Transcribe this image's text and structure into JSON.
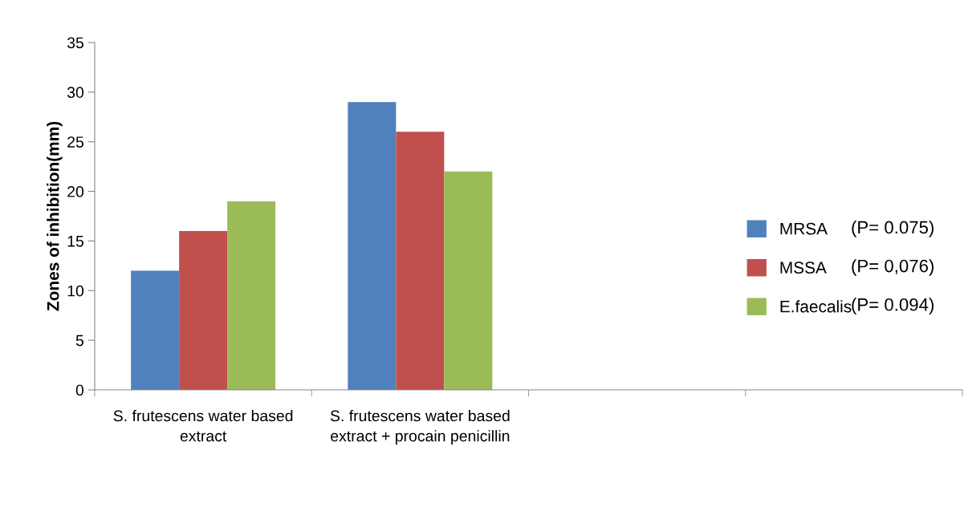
{
  "chart_data": {
    "type": "bar",
    "ylabel": "Zones of inhibition(mm)",
    "categories": [
      "S. frutescens water based extract",
      "S. frutescens water based extract + procain penicillin",
      null,
      null
    ],
    "series": [
      {
        "name": "MRSA",
        "color": "#4f81bd",
        "values": [
          12,
          29,
          null,
          null
        ]
      },
      {
        "name": "MSSA",
        "color": "#c0504d",
        "values": [
          16,
          26,
          null,
          null
        ]
      },
      {
        "name": "E.faecalis",
        "color": "#9bbb59",
        "values": [
          19,
          22,
          null,
          null
        ]
      }
    ],
    "annotations": [
      "(P= 0.075)",
      "(P= 0,076)",
      "(P= 0.094)"
    ],
    "ylim": [
      0,
      35
    ],
    "yticks": [
      0,
      5,
      10,
      15,
      20,
      25,
      30,
      35
    ],
    "grid": false,
    "legend": "right"
  }
}
